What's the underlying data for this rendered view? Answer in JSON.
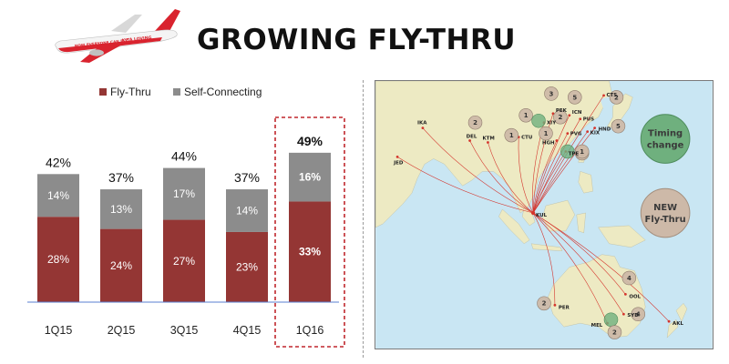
{
  "header": {
    "title": "GROWING FLY-THRU",
    "plane_livery": "NOW EVERYONE CAN FLY",
    "plane_brand": "KITA LOVING",
    "colors": {
      "livery_red": "#d9232e",
      "fuselage": "#f4f4f4"
    }
  },
  "chart_data": {
    "type": "bar",
    "stacked": true,
    "categories": [
      "1Q15",
      "2Q15",
      "3Q15",
      "4Q15",
      "1Q16"
    ],
    "series": [
      {
        "name": "Fly-Thru",
        "values": [
          28,
          24,
          27,
          23,
          33
        ],
        "labels": [
          "28%",
          "24%",
          "27%",
          "23%",
          "33%"
        ],
        "color": "#943634"
      },
      {
        "name": "Self-Connecting",
        "values": [
          14,
          13,
          17,
          14,
          16
        ],
        "labels": [
          "14%",
          "13%",
          "17%",
          "14%",
          "16%"
        ],
        "color": "#8c8c8c"
      }
    ],
    "totals": [
      "42%",
      "37%",
      "44%",
      "37%",
      "49%"
    ],
    "highlight_category": "1Q16",
    "highlight_color": "#c0272d",
    "legend_position": "top",
    "ylim": [
      0,
      60
    ],
    "grid": false,
    "baseline_color": "#5a7fd0"
  },
  "map": {
    "hub": "KUL",
    "airports": [
      "IKA",
      "JED",
      "DEL",
      "KTM",
      "CTU",
      "XIY",
      "PEK",
      "ICN",
      "PUS",
      "CTS",
      "PVG",
      "HGH",
      "TPE",
      "KIX",
      "HND",
      "PER",
      "OOL",
      "SYD",
      "MEL",
      "AKL"
    ],
    "badges": [
      {
        "airport": "DEL",
        "count": "2",
        "type": "new"
      },
      {
        "airport": "CTU",
        "count": "1",
        "type": "new"
      },
      {
        "airport": "XIY",
        "count": "",
        "type": "timing"
      },
      {
        "airport": "CTU-west",
        "count": "1",
        "type": "new"
      },
      {
        "airport": "PEK",
        "count": "3",
        "type": "new"
      },
      {
        "airport": "ICN",
        "count": "5",
        "type": "new"
      },
      {
        "airport": "CTS",
        "count": "2",
        "type": "new"
      },
      {
        "airport": "PVG",
        "count": "2",
        "type": "new"
      },
      {
        "airport": "HGH",
        "count": "1",
        "type": "new"
      },
      {
        "airport": "HGH-east",
        "count": "1",
        "type": "new"
      },
      {
        "airport": "TPE",
        "count": "",
        "type": "timing"
      },
      {
        "airport": "TPE-east",
        "count": "1",
        "type": "new"
      },
      {
        "airport": "HND",
        "count": "5",
        "type": "new"
      },
      {
        "airport": "PER",
        "count": "2",
        "type": "new"
      },
      {
        "airport": "OOL",
        "count": "4",
        "type": "new"
      },
      {
        "airport": "SYD",
        "count": "4",
        "type": "new"
      },
      {
        "airport": "MEL",
        "count": "",
        "type": "timing"
      },
      {
        "airport": "MEL-south",
        "count": "2",
        "type": "new"
      }
    ],
    "legend": {
      "timing": [
        "Timing",
        "change"
      ],
      "new": [
        "NEW",
        "Fly-Thru"
      ]
    },
    "colors": {
      "ocean": "#c9e6f3",
      "land": "#edeac3",
      "route": "#d4342c",
      "timing_fill": "#6fb07e",
      "new_fill": "#cdb9a8"
    }
  }
}
